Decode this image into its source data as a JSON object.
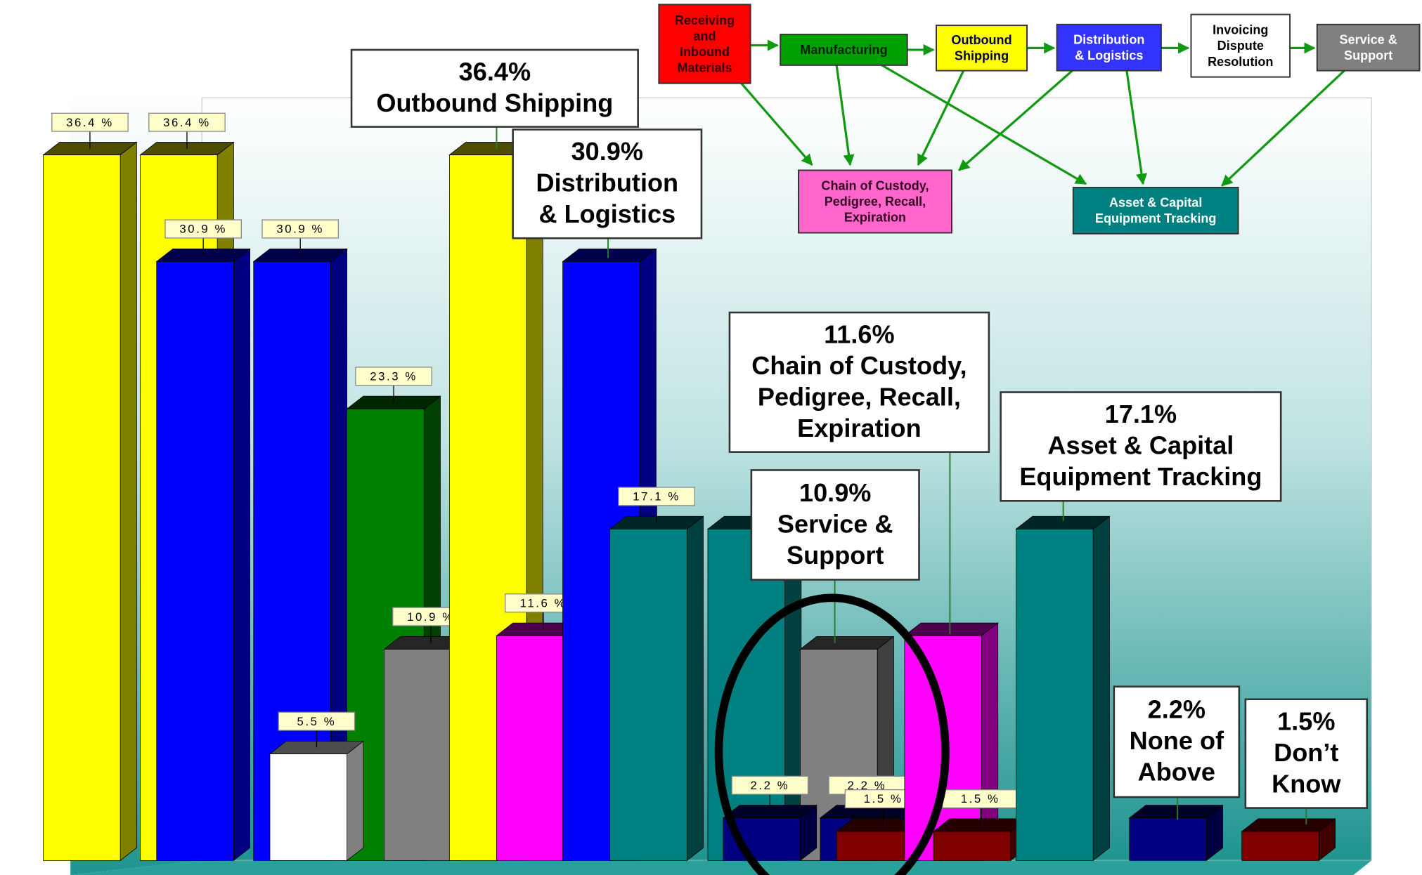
{
  "chart_data": {
    "type": "bar3d",
    "ylim": [
      0,
      40
    ],
    "bars": [
      {
        "value": 36.4,
        "color": "#ffff00",
        "value_label": "36.4 %"
      },
      {
        "value": 36.4,
        "color": "#ffff00",
        "value_label": "36.4 %"
      },
      {
        "value": 23.3,
        "color": "#008000",
        "value_label": "23.3 %"
      },
      {
        "value": 30.9,
        "color": "#0000ff",
        "value_label": "30.9 %"
      },
      {
        "value": 30.9,
        "color": "#0000ff",
        "value_label": "30.9 %"
      },
      {
        "value": 5.5,
        "color": "#ffffff",
        "value_label": "5.5 %"
      },
      {
        "value": 10.9,
        "color": "#808080",
        "value_label": "10.9 %"
      },
      {
        "value": 36.4,
        "color": "#ffff00"
      },
      {
        "value": 11.6,
        "color": "#ff00ff",
        "value_label": "11.6 %"
      },
      {
        "value": 30.9,
        "color": "#0000ff"
      },
      {
        "value": 17.1,
        "color": "#008080",
        "value_label": "17.1 %"
      },
      {
        "value": 17.1,
        "color": "#008080"
      },
      {
        "value": 10.9,
        "color": "#808080"
      },
      {
        "value": 2.2,
        "color": "#000080",
        "value_label": "2.2 %"
      },
      {
        "value": 2.2,
        "color": "#000080",
        "value_label": "2.2 %"
      },
      {
        "value": 1.5,
        "color": "#800000",
        "value_label": "1.5 %"
      },
      {
        "value": 11.6,
        "color": "#ff00ff"
      },
      {
        "value": 1.5,
        "color": "#800000",
        "value_label": "1.5 %"
      },
      {
        "value": 17.1,
        "color": "#008080"
      },
      {
        "value": 2.2,
        "color": "#000080"
      },
      {
        "value": 1.5,
        "color": "#800000"
      }
    ],
    "callouts": [
      {
        "lines": [
          "36.4%",
          "Outbound Shipping"
        ]
      },
      {
        "lines": [
          "30.9%",
          "Distribution",
          "& Logistics"
        ]
      },
      {
        "lines": [
          "11.6%",
          "Chain of Custody,",
          "Pedigree, Recall,",
          "Expiration"
        ]
      },
      {
        "lines": [
          "10.9%",
          "Service &",
          "Support"
        ]
      },
      {
        "lines": [
          "17.1%",
          "Asset & Capital",
          "Equipment Tracking"
        ]
      },
      {
        "lines": [
          "2.2%",
          "None of",
          "Above"
        ]
      },
      {
        "lines": [
          "1.5%",
          "Don’t",
          "Know"
        ]
      }
    ]
  },
  "flow_diagram": {
    "nodes": [
      {
        "lines": [
          "Receiving",
          "and",
          "Inbound",
          "Materials"
        ],
        "color": "#ff0000"
      },
      {
        "lines": [
          "Manufacturing"
        ],
        "color": "#00a000"
      },
      {
        "lines": [
          "Outbound",
          "Shipping"
        ],
        "color": "#ffff00"
      },
      {
        "lines": [
          "Distribution",
          "& Logistics"
        ],
        "color": "#3333ff"
      },
      {
        "lines": [
          "Invoicing",
          "Dispute",
          "Resolution"
        ],
        "color": "#ffffff"
      },
      {
        "lines": [
          "Service &",
          "Support"
        ],
        "color": "#808080"
      },
      {
        "lines": [
          "Chain of Custody,",
          "Pedigree, Recall,",
          "Expiration"
        ],
        "color": "#ff66cc"
      },
      {
        "lines": [
          "Asset & Capital",
          "Equipment Tracking"
        ],
        "color": "#008080"
      }
    ]
  }
}
